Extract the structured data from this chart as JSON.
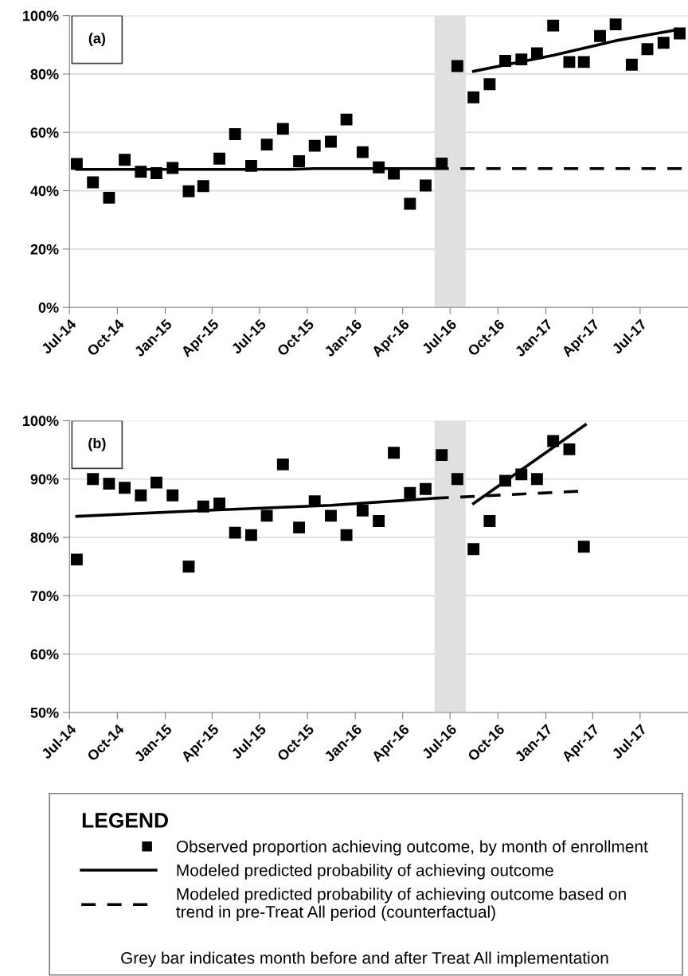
{
  "chart_data": [
    {
      "type": "scatter",
      "title": "(a)",
      "xlim": [
        "2014-07-01",
        "2017-10-01"
      ],
      "xticks": [
        {
          "value": "2014-07-01",
          "label": "Jul-14"
        },
        {
          "value": "2014-10-01",
          "label": "Oct-14"
        },
        {
          "value": "2015-01-01",
          "label": "Jan-15"
        },
        {
          "value": "2015-04-01",
          "label": "Apr-15"
        },
        {
          "value": "2015-07-01",
          "label": "Jul-15"
        },
        {
          "value": "2015-10-01",
          "label": "Oct-15"
        },
        {
          "value": "2016-01-01",
          "label": "Jan-16"
        },
        {
          "value": "2016-04-01",
          "label": "Apr-16"
        },
        {
          "value": "2016-07-01",
          "label": "Jul-16"
        },
        {
          "value": "2016-10-01",
          "label": "Oct-16"
        },
        {
          "value": "2017-01-01",
          "label": "Jan-17"
        },
        {
          "value": "2017-04-01",
          "label": "Apr-17"
        },
        {
          "value": "2017-07-01",
          "label": "Jul-17"
        }
      ],
      "ylim": [
        0,
        100
      ],
      "yticks": [
        {
          "value": 0,
          "label": "0%"
        },
        {
          "value": 20,
          "label": "20%"
        },
        {
          "value": 40,
          "label": "40%"
        },
        {
          "value": 60,
          "label": "60%"
        },
        {
          "value": 80,
          "label": "80%"
        },
        {
          "value": 100,
          "label": "100%"
        }
      ],
      "grid": "y",
      "bands": [
        {
          "axis": "x",
          "from": "2016-06-01",
          "to": "2016-07-31",
          "color": "#e0e0e0"
        }
      ],
      "series": [
        {
          "color": "#000000",
          "marker": "square",
          "x": [
            "2014-07-15",
            "2014-08-15",
            "2014-09-15",
            "2014-10-15",
            "2014-11-15",
            "2014-12-15",
            "2015-01-15",
            "2015-02-15",
            "2015-03-15",
            "2015-04-15",
            "2015-05-15",
            "2015-06-15",
            "2015-07-15",
            "2015-08-15",
            "2015-09-15",
            "2015-10-15",
            "2015-11-15",
            "2015-12-15",
            "2016-01-15",
            "2016-02-15",
            "2016-03-15",
            "2016-04-15",
            "2016-05-15",
            "2016-06-15",
            "2016-07-15",
            "2016-08-15",
            "2016-09-15",
            "2016-10-15",
            "2016-11-15",
            "2016-12-15",
            "2017-01-15",
            "2017-02-15",
            "2017-03-15",
            "2017-04-15",
            "2017-05-15",
            "2017-06-15",
            "2017-07-15",
            "2017-08-15",
            "2017-09-15"
          ],
          "values": [
            49.2,
            42.9,
            37.6,
            50.6,
            46.5,
            46.0,
            47.8,
            39.8,
            41.6,
            51.0,
            59.4,
            48.5,
            55.8,
            61.2,
            50.1,
            55.4,
            56.8,
            64.4,
            53.2,
            48.0,
            45.9,
            35.5,
            41.8,
            49.3,
            82.7,
            72.0,
            76.5,
            84.5,
            85.0,
            87.1,
            96.6,
            84.1,
            84.1,
            93.0,
            97.0,
            83.2,
            88.5,
            90.7,
            93.9
          ]
        },
        {
          "type": "line",
          "color": "#000000",
          "line_style": "solid",
          "x": [
            "2014-07-15",
            "2015-09-01",
            "2015-10-15",
            "2016-06-01"
          ],
          "values": [
            47.3,
            47.3,
            47.6,
            47.6
          ]
        },
        {
          "type": "line",
          "color": "#000000",
          "line_style": "dashed",
          "x": [
            "2016-06-01",
            "2017-10-01"
          ],
          "values": [
            47.6,
            47.6
          ]
        },
        {
          "type": "line",
          "color": "#000000",
          "line_style": "solid",
          "x": [
            "2016-08-15",
            "2017-01-15",
            "2017-05-15",
            "2017-09-15"
          ],
          "values": [
            80.9,
            86.4,
            91.4,
            95.3
          ]
        }
      ]
    },
    {
      "type": "scatter",
      "title": "(b)",
      "xlim": [
        "2014-07-01",
        "2017-10-01"
      ],
      "xticks": [
        {
          "value": "2014-07-01",
          "label": "Jul-14"
        },
        {
          "value": "2014-10-01",
          "label": "Oct-14"
        },
        {
          "value": "2015-01-01",
          "label": "Jan-15"
        },
        {
          "value": "2015-04-01",
          "label": "Apr-15"
        },
        {
          "value": "2015-07-01",
          "label": "Jul-15"
        },
        {
          "value": "2015-10-01",
          "label": "Oct-15"
        },
        {
          "value": "2016-01-01",
          "label": "Jan-16"
        },
        {
          "value": "2016-04-01",
          "label": "Apr-16"
        },
        {
          "value": "2016-07-01",
          "label": "Jul-16"
        },
        {
          "value": "2016-10-01",
          "label": "Oct-16"
        },
        {
          "value": "2017-01-01",
          "label": "Jan-17"
        },
        {
          "value": "2017-04-01",
          "label": "Apr-17"
        },
        {
          "value": "2017-07-01",
          "label": "Jul-17"
        }
      ],
      "ylim": [
        50,
        100
      ],
      "yticks": [
        {
          "value": 50,
          "label": "50%"
        },
        {
          "value": 60,
          "label": "60%"
        },
        {
          "value": 70,
          "label": "70%"
        },
        {
          "value": 80,
          "label": "80%"
        },
        {
          "value": 90,
          "label": "90%"
        },
        {
          "value": 100,
          "label": "100%"
        }
      ],
      "grid": "y",
      "legend": "bottom",
      "legend_title": "LEGEND",
      "annotations": [
        "Grey bar indicates month before and after Treat All implementation"
      ],
      "bands": [
        {
          "axis": "x",
          "from": "2016-06-01",
          "to": "2016-07-31",
          "color": "#e0e0e0"
        }
      ],
      "series": [
        {
          "name": "Observed proportion achieving outcome, by month of enrollment",
          "color": "#000000",
          "marker": "square",
          "x": [
            "2014-07-15",
            "2014-08-15",
            "2014-09-15",
            "2014-10-15",
            "2014-11-15",
            "2014-12-15",
            "2015-01-15",
            "2015-02-15",
            "2015-03-15",
            "2015-04-15",
            "2015-05-15",
            "2015-06-15",
            "2015-07-15",
            "2015-08-15",
            "2015-09-15",
            "2015-10-15",
            "2015-11-15",
            "2015-12-15",
            "2016-01-15",
            "2016-02-15",
            "2016-03-15",
            "2016-04-15",
            "2016-05-15",
            "2016-06-15",
            "2016-07-15",
            "2016-08-15",
            "2016-09-15",
            "2016-10-15",
            "2016-11-15",
            "2016-12-15",
            "2017-01-15",
            "2017-02-15",
            "2017-03-15"
          ],
          "values": [
            76.2,
            90.0,
            89.2,
            88.5,
            87.2,
            89.4,
            87.2,
            75.0,
            85.3,
            85.8,
            80.8,
            80.4,
            83.7,
            92.5,
            81.7,
            86.2,
            83.7,
            80.4,
            84.6,
            82.8,
            94.5,
            87.6,
            88.3,
            94.1,
            90.0,
            78.0,
            82.8,
            89.7,
            90.8,
            90.0,
            96.5,
            95.1,
            78.4
          ]
        },
        {
          "type": "line",
          "name": "Modeled predicted probability of achieving outcome",
          "color": "#000000",
          "line_style": "solid",
          "x": [
            "2014-07-15",
            "2015-03-15",
            "2015-11-15",
            "2016-06-01"
          ],
          "values": [
            83.6,
            84.6,
            85.5,
            86.7
          ]
        },
        {
          "type": "line",
          "name": "Modeled predicted probability of achieving outcome based on\ntrend in pre-Treat All period (counterfactual)",
          "color": "#000000",
          "line_style": "dashed",
          "x": [
            "2016-06-01",
            "2017-03-05"
          ],
          "values": [
            86.7,
            87.9
          ]
        },
        {
          "type": "line",
          "color": "#000000",
          "line_style": "solid",
          "x": [
            "2016-08-15",
            "2017-03-18"
          ],
          "values": [
            85.8,
            99.3
          ]
        }
      ]
    }
  ]
}
